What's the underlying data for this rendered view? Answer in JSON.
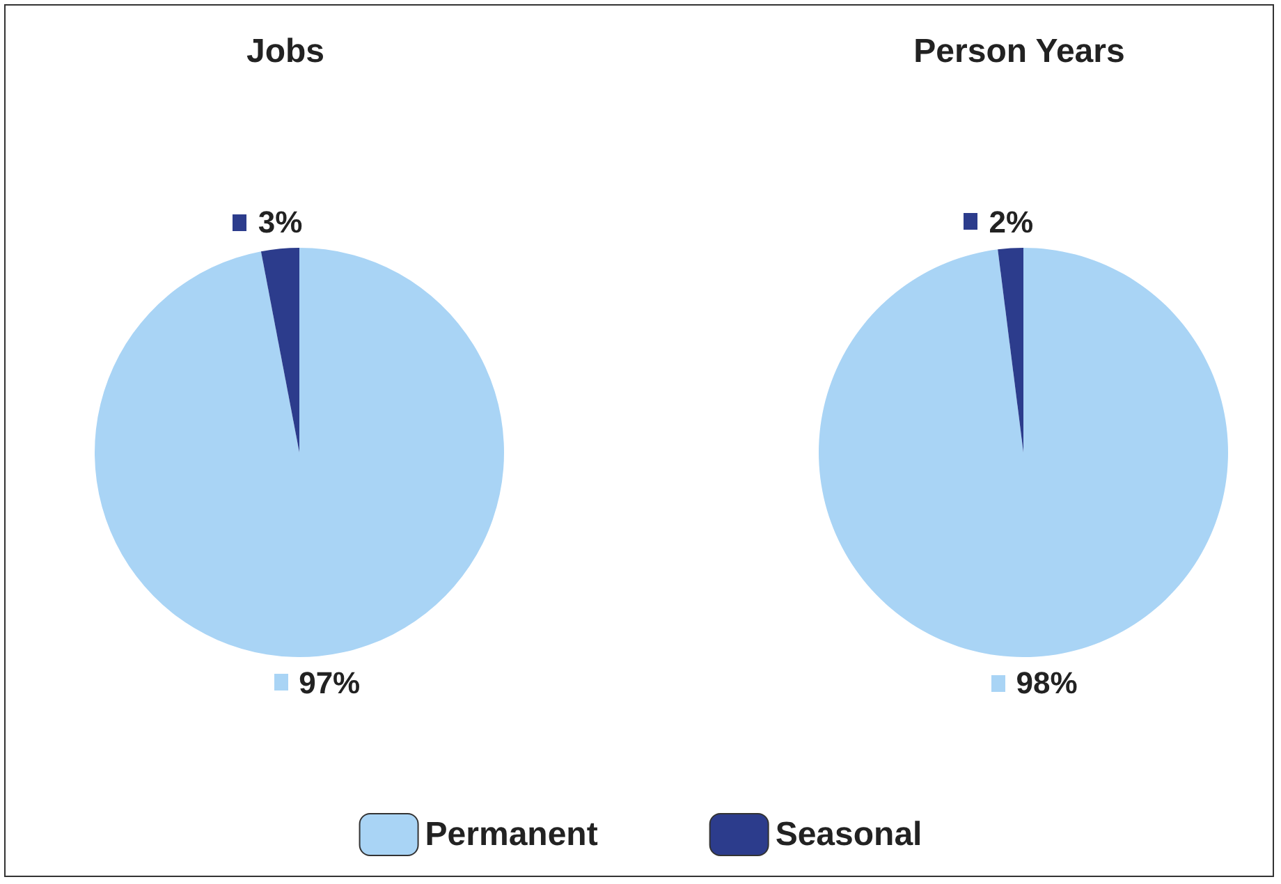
{
  "chart_data": [
    {
      "type": "pie",
      "title": "Jobs",
      "categories": [
        "Permanent",
        "Seasonal"
      ],
      "values": [
        97,
        3
      ],
      "colors": [
        "#a9d4f5",
        "#2c3c8c"
      ],
      "value_labels": [
        "97%",
        "3%"
      ],
      "legend": "bottom"
    },
    {
      "type": "pie",
      "title": "Person Years",
      "values": [
        98,
        2
      ],
      "colors": [
        "#a9d4f5",
        "#2c3c8c"
      ],
      "value_labels": [
        "98%",
        "2%"
      ]
    }
  ]
}
